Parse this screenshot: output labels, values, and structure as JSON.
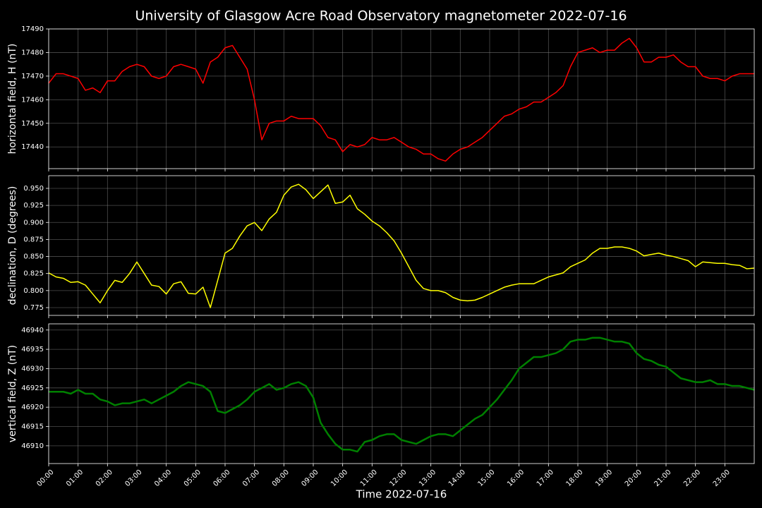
{
  "title": "University of Glasgow Acre Road Observatory magnetometer 2022-07-16",
  "xlabel": "Time 2022-07-16",
  "xlim": [
    0,
    24
  ],
  "xticks": [
    {
      "value": 0,
      "label": "00:00"
    },
    {
      "value": 1,
      "label": "01:00"
    },
    {
      "value": 2,
      "label": "02:00"
    },
    {
      "value": 3,
      "label": "03:00"
    },
    {
      "value": 4,
      "label": "04:00"
    },
    {
      "value": 5,
      "label": "05:00"
    },
    {
      "value": 6,
      "label": "06:00"
    },
    {
      "value": 7,
      "label": "07:00"
    },
    {
      "value": 8,
      "label": "08:00"
    },
    {
      "value": 9,
      "label": "09:00"
    },
    {
      "value": 10,
      "label": "10:00"
    },
    {
      "value": 11,
      "label": "11:00"
    },
    {
      "value": 12,
      "label": "12:00"
    },
    {
      "value": 13,
      "label": "13:00"
    },
    {
      "value": 14,
      "label": "14:00"
    },
    {
      "value": 15,
      "label": "15:00"
    },
    {
      "value": 16,
      "label": "16:00"
    },
    {
      "value": 17,
      "label": "17:00"
    },
    {
      "value": 18,
      "label": "18:00"
    },
    {
      "value": 19,
      "label": "19:00"
    },
    {
      "value": 20,
      "label": "20:00"
    },
    {
      "value": 21,
      "label": "21:00"
    },
    {
      "value": 22,
      "label": "22:00"
    },
    {
      "value": 23,
      "label": "23:00"
    }
  ],
  "grid": true,
  "chart_data": [
    {
      "type": "line",
      "ylabel": "horizontal field, H (nT)",
      "color": "#ff0000",
      "line_width": 1.5,
      "ylim": [
        17430.8,
        17490
      ],
      "yticks": [
        17440,
        17450,
        17460,
        17470,
        17480,
        17490
      ],
      "x": [
        0,
        0.25,
        0.5,
        0.75,
        1,
        1.25,
        1.5,
        1.75,
        2,
        2.25,
        2.5,
        2.75,
        3,
        3.25,
        3.5,
        3.75,
        4,
        4.25,
        4.5,
        4.75,
        5,
        5.25,
        5.5,
        5.75,
        6,
        6.25,
        6.5,
        6.75,
        7,
        7.25,
        7.5,
        7.75,
        8,
        8.25,
        8.5,
        8.75,
        9,
        9.25,
        9.5,
        9.75,
        10,
        10.25,
        10.5,
        10.75,
        11,
        11.25,
        11.5,
        11.75,
        12,
        12.25,
        12.5,
        12.75,
        13,
        13.25,
        13.5,
        13.75,
        14,
        14.25,
        14.5,
        14.75,
        15,
        15.25,
        15.5,
        15.75,
        16,
        16.25,
        16.5,
        16.75,
        17,
        17.25,
        17.5,
        17.75,
        18,
        18.25,
        18.5,
        18.75,
        19,
        19.25,
        19.5,
        19.75,
        20,
        20.25,
        20.5,
        20.75,
        21,
        21.25,
        21.5,
        21.75,
        22,
        22.25,
        22.5,
        22.75,
        23,
        23.25,
        23.5,
        23.75,
        24
      ],
      "values": [
        17467,
        17471,
        17471,
        17470,
        17469,
        17464,
        17465,
        17463,
        17468,
        17468,
        17472,
        17474,
        17475,
        17474,
        17470,
        17469,
        17470,
        17474,
        17475,
        17474,
        17473,
        17467,
        17476,
        17478,
        17482,
        17483,
        17478,
        17473,
        17460,
        17443,
        17450,
        17451,
        17451,
        17453,
        17452,
        17452,
        17452,
        17449,
        17444,
        17443,
        17438,
        17441,
        17440,
        17441,
        17444,
        17443,
        17443,
        17444,
        17442,
        17440,
        17439,
        17437,
        17437,
        17435,
        17434,
        17437,
        17439,
        17440,
        17442,
        17444,
        17447,
        17450,
        17453,
        17454,
        17456,
        17457,
        17459,
        17459,
        17461,
        17463,
        17466,
        17474,
        17480,
        17481,
        17482,
        17480,
        17481,
        17481,
        17484,
        17486,
        17482,
        17476,
        17476,
        17478,
        17478,
        17479,
        17476,
        17474,
        17474,
        17470,
        17469,
        17469,
        17468,
        17470,
        17471,
        17471,
        17471
      ]
    },
    {
      "type": "line",
      "ylabel": "declination, D (degrees)",
      "color": "#ffff00",
      "line_width": 1.5,
      "ylim": [
        0.7636,
        0.9686
      ],
      "yticks": [
        0.775,
        {
          "value": 0.8,
          "label": "0.800"
        },
        0.825,
        {
          "value": 0.85,
          "label": "0.850"
        },
        0.875,
        {
          "value": 0.9,
          "label": "0.900"
        },
        0.925,
        {
          "value": 0.95,
          "label": "0.950"
        }
      ],
      "x": [
        0,
        0.25,
        0.5,
        0.75,
        1,
        1.25,
        1.5,
        1.75,
        2,
        2.25,
        2.5,
        2.75,
        3,
        3.25,
        3.5,
        3.75,
        4,
        4.25,
        4.5,
        4.75,
        5,
        5.25,
        5.5,
        5.75,
        6,
        6.25,
        6.5,
        6.75,
        7,
        7.25,
        7.5,
        7.75,
        8,
        8.25,
        8.5,
        8.75,
        9,
        9.25,
        9.5,
        9.75,
        10,
        10.25,
        10.5,
        10.75,
        11,
        11.25,
        11.5,
        11.75,
        12,
        12.25,
        12.5,
        12.75,
        13,
        13.25,
        13.5,
        13.75,
        14,
        14.25,
        14.5,
        14.75,
        15,
        15.25,
        15.5,
        15.75,
        16,
        16.25,
        16.5,
        16.75,
        17,
        17.25,
        17.5,
        17.75,
        18,
        18.25,
        18.5,
        18.75,
        19,
        19.25,
        19.5,
        19.75,
        20,
        20.25,
        20.5,
        20.75,
        21,
        21.25,
        21.5,
        21.75,
        22,
        22.25,
        22.5,
        22.75,
        23,
        23.25,
        23.5,
        23.75,
        24
      ],
      "values": [
        0.826,
        0.82,
        0.818,
        0.812,
        0.813,
        0.808,
        0.795,
        0.782,
        0.8,
        0.815,
        0.812,
        0.825,
        0.842,
        0.825,
        0.808,
        0.806,
        0.795,
        0.81,
        0.813,
        0.796,
        0.795,
        0.805,
        0.775,
        0.815,
        0.855,
        0.862,
        0.88,
        0.895,
        0.9,
        0.888,
        0.905,
        0.915,
        0.94,
        0.952,
        0.956,
        0.948,
        0.935,
        0.945,
        0.955,
        0.928,
        0.93,
        0.94,
        0.92,
        0.912,
        0.902,
        0.895,
        0.885,
        0.873,
        0.855,
        0.835,
        0.815,
        0.803,
        0.8,
        0.8,
        0.797,
        0.79,
        0.786,
        0.785,
        0.786,
        0.79,
        0.795,
        0.8,
        0.805,
        0.808,
        0.81,
        0.81,
        0.81,
        0.815,
        0.82,
        0.823,
        0.826,
        0.835,
        0.84,
        0.845,
        0.855,
        0.862,
        0.862,
        0.864,
        0.864,
        0.862,
        0.858,
        0.851,
        0.853,
        0.855,
        0.852,
        0.85,
        0.847,
        0.844,
        0.835,
        0.842,
        0.841,
        0.84,
        0.84,
        0.838,
        0.837,
        0.832,
        0.833
      ]
    },
    {
      "type": "line",
      "ylabel": "vertical field, Z (nT)",
      "color": "#008000",
      "line_width": 2.5,
      "ylim": [
        46905.4,
        46941.6
      ],
      "yticks": [
        46910,
        46915,
        46920,
        46925,
        46930,
        46935,
        46940
      ],
      "x": [
        0,
        0.25,
        0.5,
        0.75,
        1,
        1.25,
        1.5,
        1.75,
        2,
        2.25,
        2.5,
        2.75,
        3,
        3.25,
        3.5,
        3.75,
        4,
        4.25,
        4.5,
        4.75,
        5,
        5.25,
        5.5,
        5.75,
        6,
        6.25,
        6.5,
        6.75,
        7,
        7.25,
        7.5,
        7.75,
        8,
        8.25,
        8.5,
        8.75,
        9,
        9.25,
        9.5,
        9.75,
        10,
        10.25,
        10.5,
        10.75,
        11,
        11.25,
        11.5,
        11.75,
        12,
        12.25,
        12.5,
        12.75,
        13,
        13.25,
        13.5,
        13.75,
        14,
        14.25,
        14.5,
        14.75,
        15,
        15.25,
        15.5,
        15.75,
        16,
        16.25,
        16.5,
        16.75,
        17,
        17.25,
        17.5,
        17.75,
        18,
        18.25,
        18.5,
        18.75,
        19,
        19.25,
        19.5,
        19.75,
        20,
        20.25,
        20.5,
        20.75,
        21,
        21.25,
        21.5,
        21.75,
        22,
        22.25,
        22.5,
        22.75,
        23,
        23.25,
        23.5,
        23.75,
        24
      ],
      "values": [
        46924,
        46924,
        46924,
        46923.5,
        46924.5,
        46923.5,
        46923.5,
        46922,
        46921.5,
        46920.5,
        46921,
        46921,
        46921.5,
        46922,
        46921,
        46922,
        46923,
        46924,
        46925.5,
        46926.5,
        46926,
        46925.5,
        46924,
        46919,
        46918.5,
        46919.5,
        46920.5,
        46922,
        46924,
        46925,
        46926,
        46924.5,
        46925,
        46926,
        46926.5,
        46925.5,
        46922.5,
        46916,
        46913,
        46910.5,
        46909,
        46909,
        46908.5,
        46911,
        46911.5,
        46912.5,
        46913,
        46913,
        46911.5,
        46911,
        46910.5,
        46911.5,
        46912.5,
        46913,
        46913,
        46912.5,
        46914,
        46915.5,
        46917,
        46918,
        46920,
        46922,
        46924.5,
        46927,
        46930,
        46931.5,
        46933,
        46933,
        46933.5,
        46934,
        46935,
        46937,
        46937.5,
        46937.5,
        46938,
        46938,
        46937.5,
        46937,
        46937,
        46936.5,
        46934,
        46932.5,
        46932,
        46931,
        46930.5,
        46929,
        46927.5,
        46927,
        46926.5,
        46926.5,
        46927,
        46926,
        46926,
        46925.5,
        46925.5,
        46925,
        46924.5
      ]
    }
  ]
}
